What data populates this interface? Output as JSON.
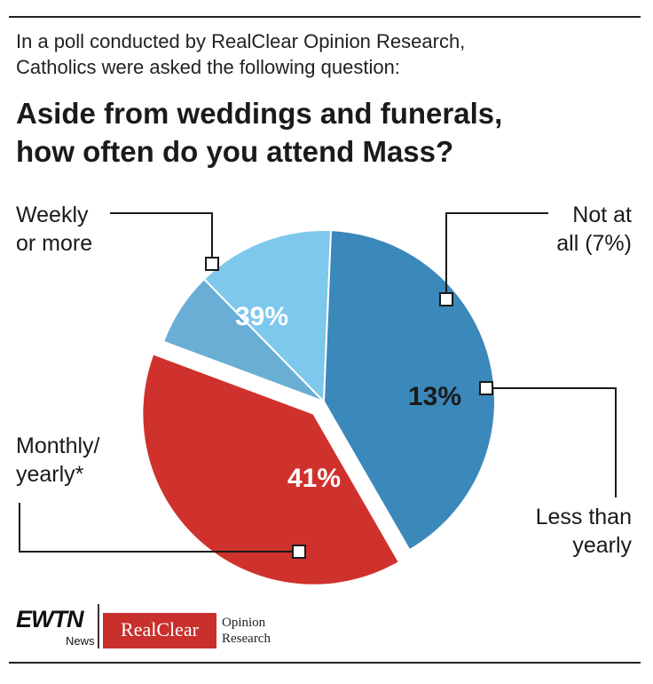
{
  "header": {
    "intro_line1": "In a poll conducted by RealClear Opinion Research,",
    "intro_line2": "Catholics were asked the following question:",
    "title_line1": "Aside from weddings and funerals,",
    "title_line2": "how often do you attend Mass?"
  },
  "chart_data": {
    "type": "pie",
    "slices": [
      {
        "label_lines": [
          "Weekly",
          "or more"
        ],
        "value": 39,
        "value_label": "39%",
        "color": "#cf322c",
        "exploded": true
      },
      {
        "label_lines": [
          "Not at",
          "all (7%)"
        ],
        "value": 7,
        "value_label": "",
        "color": "#6aaed6",
        "exploded": false
      },
      {
        "label_lines": [
          "Less than",
          "yearly"
        ],
        "value": 13,
        "value_label": "13%",
        "color": "#7dc8ec",
        "exploded": false
      },
      {
        "label_lines": [
          "Monthly/",
          "yearly*"
        ],
        "value": 41,
        "value_label": "41%",
        "color": "#3b88bb",
        "exploded": false
      }
    ]
  },
  "logos": {
    "ewtn": "EWTN",
    "ewtn_news": "News",
    "realclear": "RealClear",
    "opinion_line1": "Opinion",
    "opinion_line2": "Research"
  }
}
